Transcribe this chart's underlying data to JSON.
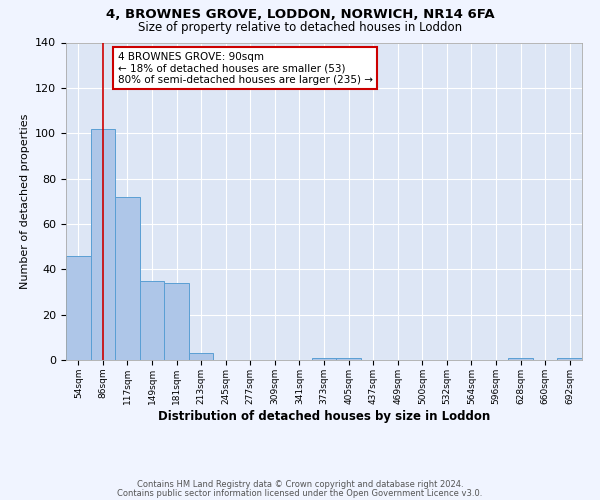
{
  "title": "4, BROWNES GROVE, LODDON, NORWICH, NR14 6FA",
  "subtitle": "Size of property relative to detached houses in Loddon",
  "xlabel": "Distribution of detached houses by size in Loddon",
  "ylabel": "Number of detached properties",
  "footnote1": "Contains HM Land Registry data © Crown copyright and database right 2024.",
  "footnote2": "Contains public sector information licensed under the Open Government Licence v3.0.",
  "annotation_line1": "4 BROWNES GROVE: 90sqm",
  "annotation_line2": "← 18% of detached houses are smaller (53)",
  "annotation_line3": "80% of semi-detached houses are larger (235) →",
  "bin_labels": [
    "54sqm",
    "86sqm",
    "117sqm",
    "149sqm",
    "181sqm",
    "213sqm",
    "245sqm",
    "277sqm",
    "309sqm",
    "341sqm",
    "373sqm",
    "405sqm",
    "437sqm",
    "469sqm",
    "500sqm",
    "532sqm",
    "564sqm",
    "596sqm",
    "628sqm",
    "660sqm",
    "692sqm"
  ],
  "bar_heights": [
    46,
    102,
    72,
    35,
    34,
    3,
    0,
    0,
    0,
    0,
    1,
    1,
    0,
    0,
    0,
    0,
    0,
    0,
    1,
    0,
    1
  ],
  "bar_color": "#aec6e8",
  "bar_edge_color": "#5a9fd4",
  "red_line_x": 1.0,
  "red_line_color": "#cc0000",
  "ylim": [
    0,
    140
  ],
  "yticks": [
    0,
    20,
    40,
    60,
    80,
    100,
    120,
    140
  ],
  "annotation_box_color": "#ffffff",
  "annotation_box_edge": "#cc0000",
  "background_color": "#f0f4ff",
  "plot_background": "#dde6f5"
}
